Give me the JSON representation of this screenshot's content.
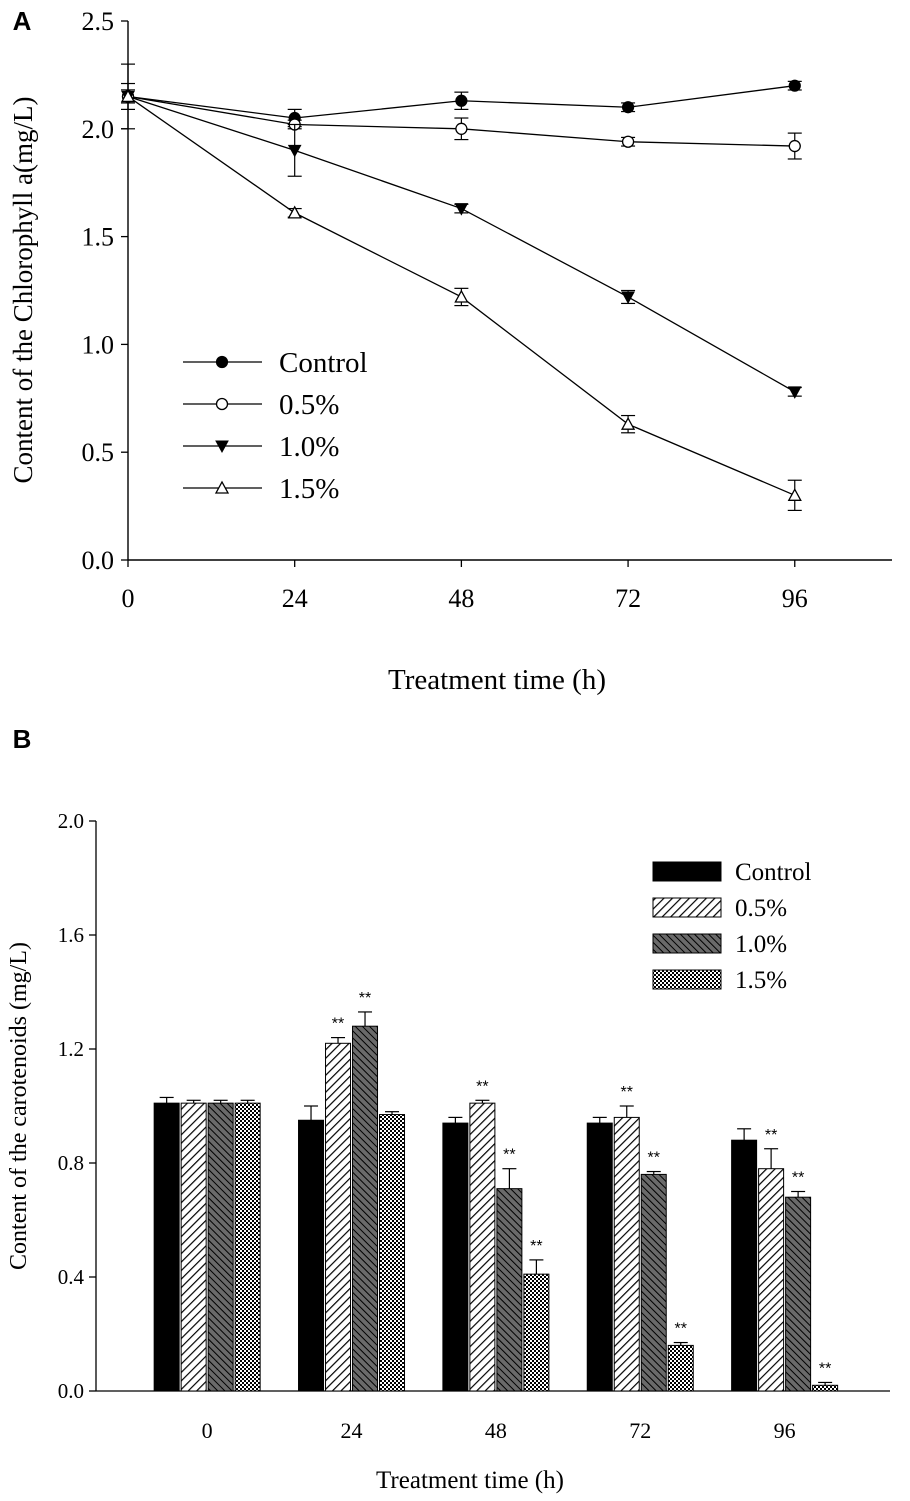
{
  "chart_data": [
    {
      "panel": "A",
      "type": "line",
      "xlabel": "Treatment time (h)",
      "ylabel": "Content of the Chlorophyll a(mg/L)",
      "x": [
        0,
        24,
        48,
        72,
        96
      ],
      "xlim": [
        0,
        110
      ],
      "ylim": [
        0,
        2.5
      ],
      "xticks": [
        "0",
        "24",
        "48",
        "72",
        "96"
      ],
      "yticks": [
        "0.0",
        "0.5",
        "1.0",
        "1.5",
        "2.0",
        "2.5"
      ],
      "legend_position": "lower-left",
      "series": [
        {
          "name": "Control",
          "marker": "filled-circle",
          "values": [
            2.15,
            2.05,
            2.13,
            2.1,
            2.2
          ],
          "errors": [
            0.06,
            0.04,
            0.04,
            0.02,
            0.02
          ]
        },
        {
          "name": "0.5%",
          "marker": "open-circle",
          "values": [
            2.15,
            2.02,
            2.0,
            1.94,
            1.92
          ],
          "errors": [
            0.15,
            0.02,
            0.05,
            0.02,
            0.06
          ]
        },
        {
          "name": "1.0%",
          "marker": "filled-triangle-down",
          "values": [
            2.15,
            1.9,
            1.63,
            1.22,
            0.78
          ],
          "errors": [
            0.03,
            0.12,
            0.02,
            0.03,
            0.02
          ]
        },
        {
          "name": "1.5%",
          "marker": "open-triangle-up",
          "values": [
            2.15,
            1.61,
            1.22,
            0.63,
            0.3
          ],
          "errors": [
            0.03,
            0.02,
            0.04,
            0.04,
            0.07
          ]
        }
      ]
    },
    {
      "panel": "B",
      "type": "bar",
      "xlabel": "Treatment time (h)",
      "ylabel": "Content of the carotenoids (mg/L)",
      "categories": [
        "0",
        "24",
        "48",
        "72",
        "96"
      ],
      "ylim": [
        0,
        2.0
      ],
      "yticks": [
        "0.0",
        "0.4",
        "0.8",
        "1.2",
        "1.6",
        "2.0"
      ],
      "legend_position": "top-right",
      "series": [
        {
          "name": "Control",
          "pattern": "solid",
          "values": [
            1.01,
            0.95,
            0.94,
            0.94,
            0.88
          ],
          "errors": [
            0.02,
            0.05,
            0.02,
            0.02,
            0.04
          ],
          "marks": [
            "",
            "",
            "",
            "",
            ""
          ]
        },
        {
          "name": "0.5%",
          "pattern": "light-hatch",
          "values": [
            1.01,
            1.22,
            1.01,
            0.96,
            0.78
          ],
          "errors": [
            0.01,
            0.02,
            0.01,
            0.04,
            0.07
          ],
          "marks": [
            "",
            "**",
            "**",
            "**",
            "**"
          ]
        },
        {
          "name": "1.0%",
          "pattern": "dark-hatch",
          "values": [
            1.01,
            1.28,
            0.71,
            0.76,
            0.68
          ],
          "errors": [
            0.01,
            0.05,
            0.07,
            0.01,
            0.02
          ],
          "marks": [
            "",
            "**",
            "**",
            "**",
            "**"
          ]
        },
        {
          "name": "1.5%",
          "pattern": "checker",
          "values": [
            1.01,
            0.97,
            0.41,
            0.16,
            0.02
          ],
          "errors": [
            0.01,
            0.01,
            0.05,
            0.01,
            0.01
          ],
          "marks": [
            "",
            "",
            "**",
            "**",
            "**"
          ]
        }
      ]
    }
  ],
  "colors": {
    "ink": "#000000",
    "hatch_light_bg": "#ffffff",
    "hatch_dark_bg": "#6a6a6a",
    "checker_bg": "#ffffff"
  }
}
